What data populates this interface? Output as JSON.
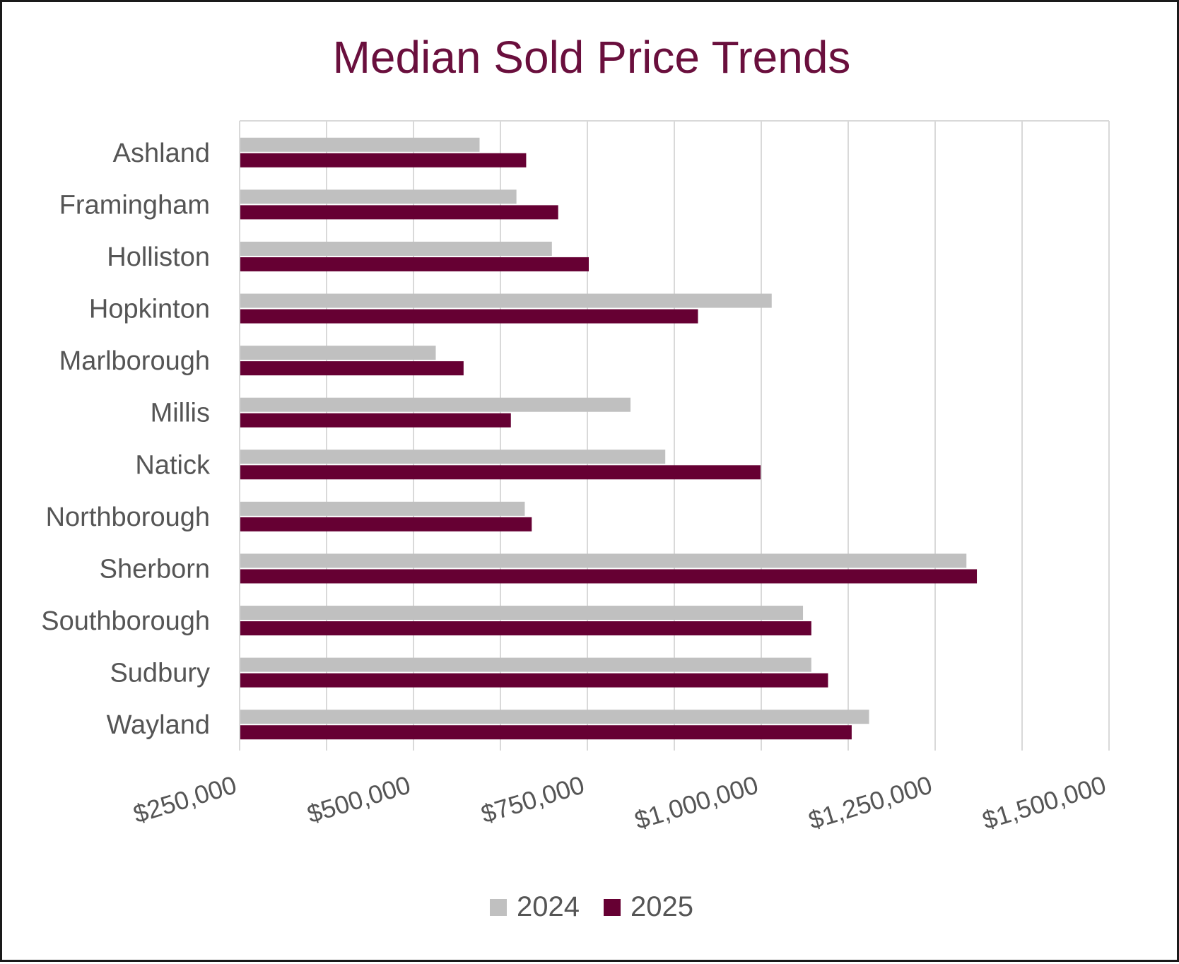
{
  "chart_data": {
    "type": "bar",
    "orientation": "horizontal",
    "title": "Median Sold Price Trends",
    "xlabel": "",
    "ylabel": "",
    "categories": [
      "Ashland",
      "Framingham",
      "Holliston",
      "Hopkinton",
      "Marlborough",
      "Millis",
      "Natick",
      "Northborough",
      "Sherborn",
      "Southborough",
      "Sudbury",
      "Wayland"
    ],
    "series": [
      {
        "name": "2024",
        "color": "#c0c0c0",
        "values": [
          595000,
          648000,
          699000,
          1015000,
          532000,
          812000,
          862000,
          660000,
          1295000,
          1060000,
          1072000,
          1155000
        ]
      },
      {
        "name": "2025",
        "color": "#660033",
        "values": [
          662000,
          708000,
          752000,
          909000,
          572000,
          640000,
          999000,
          670000,
          1310000,
          1072000,
          1096000,
          1130000
        ]
      }
    ],
    "xlim": [
      250000,
      1500000
    ],
    "x_ticks": [
      250000,
      375000,
      500000,
      625000,
      750000,
      875000,
      1000000,
      1125000,
      1250000,
      1375000,
      1500000
    ],
    "x_tick_labels": [
      "$250,000",
      "$500,000",
      "$750,000",
      "$1,000,000",
      "$1,250,000",
      "$1,500,000"
    ],
    "x_tick_label_values": [
      250000,
      500000,
      750000,
      1000000,
      1250000,
      1500000
    ],
    "grid": "vertical",
    "legend_position": "bottom"
  }
}
